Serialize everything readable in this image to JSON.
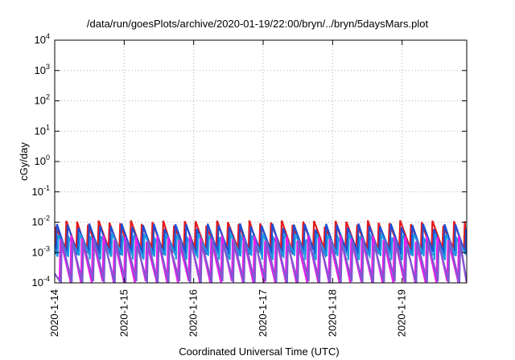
{
  "chart_data": {
    "type": "line",
    "title": "/data/run/goesPlots/archive/2020-01-19/22:00/bryn/../bryn/5daysMars.plot",
    "xlabel": "Coordinated Universal Time (UTC)",
    "ylabel": "cGy/day",
    "yscale": "log",
    "ylim": [
      0.0001,
      10000
    ],
    "xlim": [
      0,
      5.93
    ],
    "yticks": [
      {
        "base": "10",
        "exp": "4",
        "value": 10000
      },
      {
        "base": "10",
        "exp": "3",
        "value": 1000
      },
      {
        "base": "10",
        "exp": "2",
        "value": 100
      },
      {
        "base": "10",
        "exp": "1",
        "value": 10
      },
      {
        "base": "10",
        "exp": "0",
        "value": 1
      },
      {
        "base": "10",
        "exp": "-1",
        "value": 0.1
      },
      {
        "base": "10",
        "exp": "-2",
        "value": 0.01
      },
      {
        "base": "10",
        "exp": "-3",
        "value": 0.001
      },
      {
        "base": "10",
        "exp": "-4",
        "value": 0.0001
      }
    ],
    "xticks": [
      {
        "label": "2020-1-14",
        "value": 0
      },
      {
        "label": "2020-1-15",
        "value": 1
      },
      {
        "label": "2020-1-16",
        "value": 2
      },
      {
        "label": "2020-1-17",
        "value": 3
      },
      {
        "label": "2020-1-18",
        "value": 4
      },
      {
        "label": "2020-1-19",
        "value": 5
      }
    ],
    "grid": true,
    "series": [
      {
        "color": "#e31a1c",
        "period_days": 0.155,
        "phase": 0.0,
        "peak": 0.0095,
        "trough": 0.0012
      },
      {
        "color": "#1f4fd6",
        "period_days": 0.155,
        "phase": 0.02,
        "peak": 0.0075,
        "trough": 0.0009
      },
      {
        "color": "#1e9be0",
        "period_days": 0.155,
        "phase": 0.04,
        "peak": 0.0035,
        "trough": 0.0007
      },
      {
        "color": "#e81ee8",
        "period_days": 0.155,
        "phase": 0.07,
        "peak": 0.003,
        "trough": 0.0001
      },
      {
        "color": "#7a5ad0",
        "period_days": 0.155,
        "phase": 0.09,
        "peak": 0.0022,
        "trough": 0.0001
      }
    ]
  }
}
